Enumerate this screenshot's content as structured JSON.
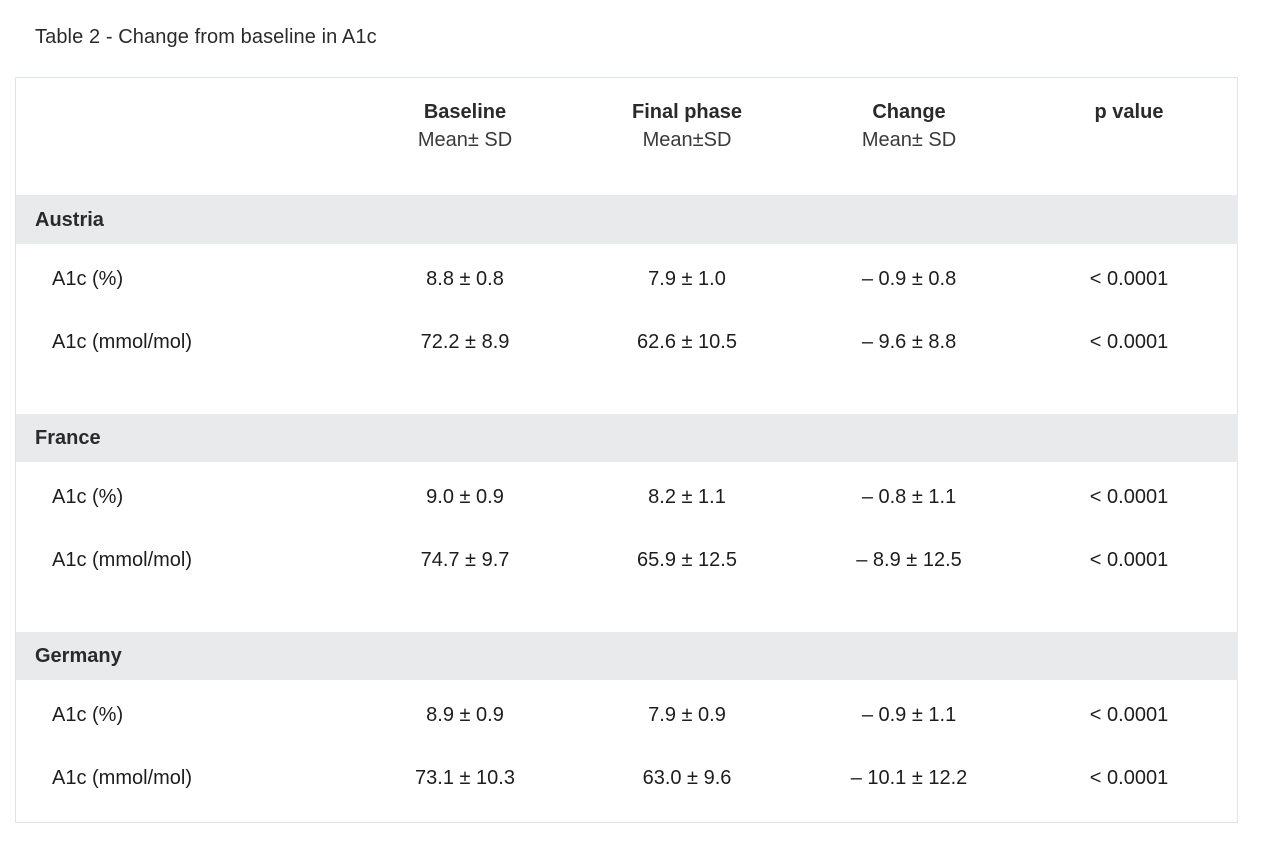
{
  "caption": "Table 2 - Change from baseline in A1c",
  "headers": [
    {
      "main": "",
      "sub": ""
    },
    {
      "main": "Baseline",
      "sub": "Mean± SD"
    },
    {
      "main": "Final phase",
      "sub": "Mean±SD"
    },
    {
      "main": "Change",
      "sub": "Mean± SD"
    },
    {
      "main": "p value",
      "sub": ""
    }
  ],
  "groups": [
    {
      "name": "Austria",
      "rows": [
        {
          "label": "A1c (%)",
          "baseline": "8.8 ± 0.8",
          "final": "7.9 ± 1.0",
          "change": "– 0.9 ± 0.8",
          "p": "< 0.0001"
        },
        {
          "label": "A1c (mmol/mol)",
          "baseline": "72.2 ± 8.9",
          "final": "62.6 ± 10.5",
          "change": "–  9.6 ± 8.8",
          "p": "< 0.0001"
        }
      ]
    },
    {
      "name": "France",
      "rows": [
        {
          "label": "A1c (%)",
          "baseline": "9.0 ± 0.9",
          "final": "8.2 ± 1.1",
          "change": "–  0.8 ± 1.1",
          "p": "< 0.0001"
        },
        {
          "label": "A1c (mmol/mol)",
          "baseline": "74.7 ±  9.7",
          "final": "65.9 ± 12.5",
          "change": "–  8.9 ± 12.5",
          "p": "< 0.0001"
        }
      ]
    },
    {
      "name": "Germany",
      "rows": [
        {
          "label": "A1c (%)",
          "baseline": "8.9 ± 0.9",
          "final": "7.9 ± 0.9",
          "change": "–  0.9 ± 1.1",
          "p": "< 0.0001"
        },
        {
          "label": "A1c (mmol/mol)",
          "baseline": "73.1 ± 10.3",
          "final": "63.0 ± 9.6",
          "change": "–  10.1 ± 12.2",
          "p": "< 0.0001"
        }
      ]
    }
  ]
}
